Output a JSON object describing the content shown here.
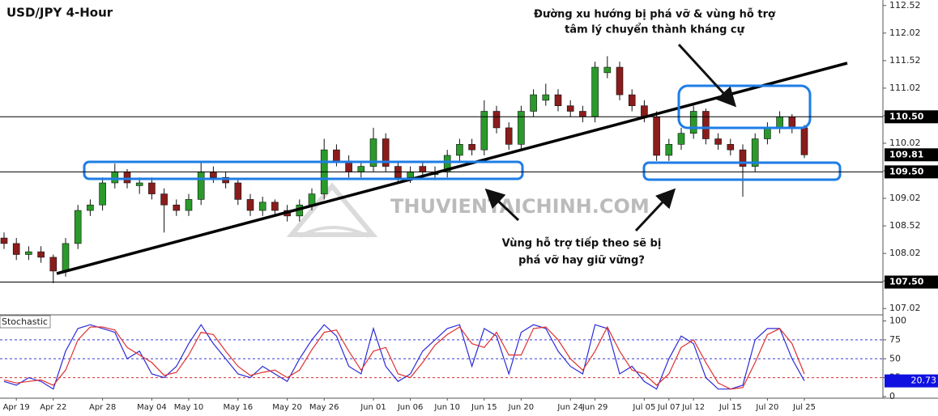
{
  "chart_data": {
    "type": "candlestick",
    "title": "USD/JPY 4-Hour",
    "watermark": "THUVIENTAICHINH.COM",
    "categories": [
      null,
      "Apr 19",
      null,
      null,
      "Apr 22",
      null,
      null,
      null,
      "Apr 28",
      null,
      null,
      null,
      "May 04",
      null,
      null,
      "May 10",
      null,
      null,
      null,
      "May 16",
      null,
      null,
      null,
      "May 20",
      null,
      null,
      "May 26",
      null,
      null,
      null,
      "Jun 01",
      null,
      null,
      "Jun 06",
      null,
      null,
      "Jun 10",
      null,
      null,
      "Jun 15",
      null,
      null,
      "Jun 20",
      null,
      null,
      null,
      "Jun 24",
      null,
      "Jun 29",
      null,
      null,
      null,
      "Jul 05",
      null,
      "Jul 07",
      null,
      "Jul 12",
      null,
      null,
      "Jul 15",
      null,
      null,
      "Jul 20",
      null,
      null,
      "Jul 25"
    ],
    "open": [
      108.3,
      108.2,
      108.0,
      108.05,
      107.95,
      107.7,
      108.2,
      108.8,
      108.9,
      109.3,
      109.5,
      109.25,
      109.3,
      109.1,
      108.9,
      108.8,
      109.0,
      109.5,
      109.4,
      109.3,
      109.0,
      108.8,
      108.95,
      108.8,
      108.7,
      108.9,
      109.1,
      109.9,
      109.7,
      109.5,
      109.6,
      110.1,
      109.6,
      109.4,
      109.6,
      109.45,
      109.5,
      109.8,
      110.0,
      109.9,
      110.6,
      110.3,
      110.0,
      110.6,
      110.8,
      110.9,
      110.7,
      110.6,
      110.5,
      111.3,
      111.4,
      110.9,
      110.7,
      110.5,
      109.8,
      110.0,
      110.2,
      110.6,
      110.1,
      110.0,
      109.9,
      109.6,
      110.1,
      110.3,
      110.5,
      110.3
    ],
    "high": [
      108.4,
      108.3,
      108.15,
      108.15,
      108.0,
      108.3,
      108.9,
      109.0,
      109.4,
      109.65,
      109.55,
      109.4,
      109.4,
      109.2,
      109.0,
      109.1,
      109.7,
      109.6,
      109.5,
      109.35,
      109.1,
      109.05,
      109.0,
      108.9,
      109.0,
      109.2,
      110.1,
      110.0,
      109.8,
      109.7,
      110.3,
      110.2,
      109.7,
      109.6,
      109.7,
      109.6,
      109.9,
      110.1,
      110.1,
      110.8,
      110.7,
      110.4,
      110.7,
      111.0,
      111.1,
      111.0,
      110.8,
      110.7,
      111.5,
      111.6,
      111.5,
      111.0,
      110.8,
      110.6,
      110.1,
      110.3,
      110.7,
      110.65,
      110.2,
      110.1,
      110.0,
      110.2,
      110.4,
      110.6,
      110.55,
      110.35
    ],
    "low": [
      108.1,
      107.9,
      107.9,
      107.85,
      107.48,
      107.6,
      108.1,
      108.7,
      108.8,
      109.2,
      109.2,
      109.1,
      109.0,
      108.4,
      108.7,
      108.7,
      108.9,
      109.3,
      109.2,
      108.9,
      108.7,
      108.7,
      108.7,
      108.6,
      108.6,
      108.8,
      109.0,
      109.6,
      109.4,
      109.4,
      109.5,
      109.5,
      109.3,
      109.3,
      109.4,
      109.35,
      109.4,
      109.7,
      109.8,
      109.8,
      110.2,
      109.9,
      109.9,
      110.5,
      110.7,
      110.6,
      110.5,
      110.4,
      110.4,
      111.2,
      110.8,
      110.6,
      110.4,
      109.7,
      109.7,
      109.9,
      110.1,
      110.0,
      109.9,
      109.8,
      109.05,
      109.5,
      110.0,
      110.2,
      110.2,
      109.75
    ],
    "close": [
      108.2,
      108.0,
      108.05,
      107.95,
      107.7,
      108.2,
      108.8,
      108.9,
      109.3,
      109.5,
      109.3,
      109.3,
      109.1,
      108.9,
      108.8,
      109.0,
      109.5,
      109.4,
      109.3,
      109.0,
      108.8,
      108.95,
      108.8,
      108.7,
      108.9,
      109.1,
      109.9,
      109.7,
      109.5,
      109.6,
      110.1,
      109.6,
      109.4,
      109.5,
      109.5,
      109.5,
      109.8,
      110.0,
      109.9,
      110.6,
      110.3,
      110.0,
      110.6,
      110.9,
      110.9,
      110.7,
      110.6,
      110.5,
      111.4,
      111.4,
      110.9,
      110.7,
      110.5,
      109.8,
      110.0,
      110.2,
      110.6,
      110.1,
      110.0,
      109.9,
      109.6,
      110.1,
      110.3,
      110.5,
      110.3,
      109.81
    ],
    "up_color": "#2a9a2a",
    "down_color": "#8b1c1c",
    "ylim": [
      106.92,
      112.62
    ],
    "yticks": [
      107.02,
      107.52,
      108.02,
      108.52,
      109.02,
      109.52,
      110.02,
      110.52,
      111.02,
      111.52,
      112.02,
      112.52
    ],
    "hlines": [
      {
        "value": 110.5,
        "label": "110.50"
      },
      {
        "value": 109.5,
        "label": "109.50"
      },
      {
        "value": 107.5,
        "label": "107.50"
      }
    ],
    "annotations": [
      [
        "Đường xu hướng bị phá vỡ & vùng hỗ trợ",
        "tâm lý chuyển thành kháng cự"
      ],
      [
        "Vùng hỗ trợ tiếp theo sẽ bị",
        "phá vỡ hay giữ vững?"
      ]
    ],
    "indicator": {
      "type": "line",
      "name": "Stochastic",
      "ylim": [
        0,
        107
      ],
      "yticks": [
        0,
        25,
        50,
        75,
        100
      ],
      "levels": [
        {
          "value": 75,
          "color": "#3b3bd6"
        },
        {
          "value": 50,
          "color": "#3b3bd6"
        },
        {
          "value": 25,
          "color": "#d03030"
        }
      ],
      "series": [
        {
          "color": "#2b2bd8",
          "values": [
            20,
            15,
            25,
            20,
            10,
            60,
            90,
            95,
            90,
            85,
            50,
            60,
            30,
            25,
            40,
            70,
            95,
            70,
            50,
            30,
            25,
            40,
            30,
            20,
            50,
            75,
            95,
            80,
            40,
            30,
            90,
            40,
            20,
            30,
            60,
            75,
            90,
            95,
            40,
            90,
            80,
            30,
            85,
            95,
            90,
            60,
            40,
            30,
            95,
            90,
            30,
            40,
            20,
            10,
            50,
            80,
            70,
            25,
            10,
            10,
            15,
            75,
            90,
            90,
            50,
            20.73
          ]
        },
        {
          "color": "#e03030",
          "values": [
            22,
            18,
            20,
            22,
            15,
            35,
            75,
            92,
            92,
            88,
            65,
            55,
            45,
            28,
            32,
            55,
            85,
            82,
            60,
            40,
            28,
            32,
            35,
            25,
            35,
            62,
            85,
            88,
            60,
            35,
            60,
            65,
            30,
            25,
            45,
            68,
            82,
            92,
            70,
            65,
            85,
            55,
            55,
            90,
            92,
            75,
            50,
            35,
            60,
            92,
            60,
            35,
            30,
            15,
            30,
            65,
            75,
            45,
            18,
            10,
            12,
            45,
            82,
            90,
            70,
            30
          ]
        }
      ]
    }
  }
}
